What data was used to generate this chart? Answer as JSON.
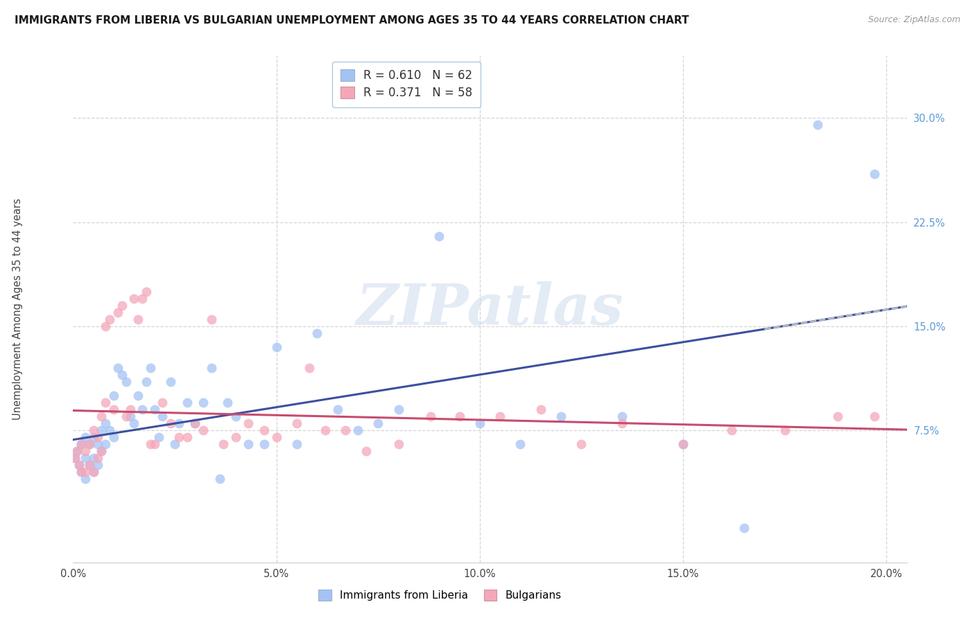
{
  "title": "IMMIGRANTS FROM LIBERIA VS BULGARIAN UNEMPLOYMENT AMONG AGES 35 TO 44 YEARS CORRELATION CHART",
  "source": "Source: ZipAtlas.com",
  "ylabel": "Unemployment Among Ages 35 to 44 years",
  "xlim": [
    0.0,
    0.205
  ],
  "ylim": [
    -0.02,
    0.345
  ],
  "blue_color": "#a4c2f4",
  "pink_color": "#f4a7b9",
  "blue_line_color": "#3c50a0",
  "pink_line_color": "#c84b6e",
  "R_blue": 0.61,
  "N_blue": 62,
  "R_pink": 0.371,
  "N_pink": 58,
  "watermark": "ZIPatlas",
  "blue_x": [
    0.0005,
    0.001,
    0.0015,
    0.002,
    0.002,
    0.003,
    0.003,
    0.003,
    0.004,
    0.004,
    0.005,
    0.005,
    0.005,
    0.006,
    0.006,
    0.007,
    0.007,
    0.008,
    0.008,
    0.009,
    0.01,
    0.01,
    0.011,
    0.012,
    0.013,
    0.014,
    0.015,
    0.016,
    0.017,
    0.018,
    0.019,
    0.02,
    0.021,
    0.022,
    0.024,
    0.025,
    0.026,
    0.028,
    0.03,
    0.032,
    0.034,
    0.036,
    0.038,
    0.04,
    0.043,
    0.047,
    0.05,
    0.055,
    0.06,
    0.065,
    0.07,
    0.075,
    0.08,
    0.09,
    0.1,
    0.11,
    0.12,
    0.135,
    0.15,
    0.165,
    0.183,
    0.197
  ],
  "blue_y": [
    0.055,
    0.06,
    0.05,
    0.065,
    0.045,
    0.04,
    0.055,
    0.07,
    0.05,
    0.065,
    0.045,
    0.055,
    0.07,
    0.05,
    0.065,
    0.06,
    0.075,
    0.065,
    0.08,
    0.075,
    0.07,
    0.1,
    0.12,
    0.115,
    0.11,
    0.085,
    0.08,
    0.1,
    0.09,
    0.11,
    0.12,
    0.09,
    0.07,
    0.085,
    0.11,
    0.065,
    0.08,
    0.095,
    0.08,
    0.095,
    0.12,
    0.04,
    0.095,
    0.085,
    0.065,
    0.065,
    0.135,
    0.065,
    0.145,
    0.09,
    0.075,
    0.08,
    0.09,
    0.215,
    0.08,
    0.065,
    0.085,
    0.085,
    0.065,
    0.005,
    0.295,
    0.26
  ],
  "pink_x": [
    0.0005,
    0.001,
    0.0015,
    0.002,
    0.002,
    0.003,
    0.003,
    0.004,
    0.004,
    0.005,
    0.005,
    0.006,
    0.006,
    0.007,
    0.007,
    0.008,
    0.008,
    0.009,
    0.01,
    0.011,
    0.012,
    0.013,
    0.014,
    0.015,
    0.016,
    0.017,
    0.018,
    0.019,
    0.02,
    0.022,
    0.024,
    0.026,
    0.028,
    0.03,
    0.032,
    0.034,
    0.037,
    0.04,
    0.043,
    0.047,
    0.05,
    0.055,
    0.058,
    0.062,
    0.067,
    0.072,
    0.08,
    0.088,
    0.095,
    0.105,
    0.115,
    0.125,
    0.135,
    0.15,
    0.162,
    0.175,
    0.188,
    0.197
  ],
  "pink_y": [
    0.055,
    0.06,
    0.05,
    0.045,
    0.065,
    0.045,
    0.06,
    0.05,
    0.065,
    0.045,
    0.075,
    0.055,
    0.07,
    0.06,
    0.085,
    0.095,
    0.15,
    0.155,
    0.09,
    0.16,
    0.165,
    0.085,
    0.09,
    0.17,
    0.155,
    0.17,
    0.175,
    0.065,
    0.065,
    0.095,
    0.08,
    0.07,
    0.07,
    0.08,
    0.075,
    0.155,
    0.065,
    0.07,
    0.08,
    0.075,
    0.07,
    0.08,
    0.12,
    0.075,
    0.075,
    0.06,
    0.065,
    0.085,
    0.085,
    0.085,
    0.09,
    0.065,
    0.08,
    0.065,
    0.075,
    0.075,
    0.085,
    0.085
  ]
}
